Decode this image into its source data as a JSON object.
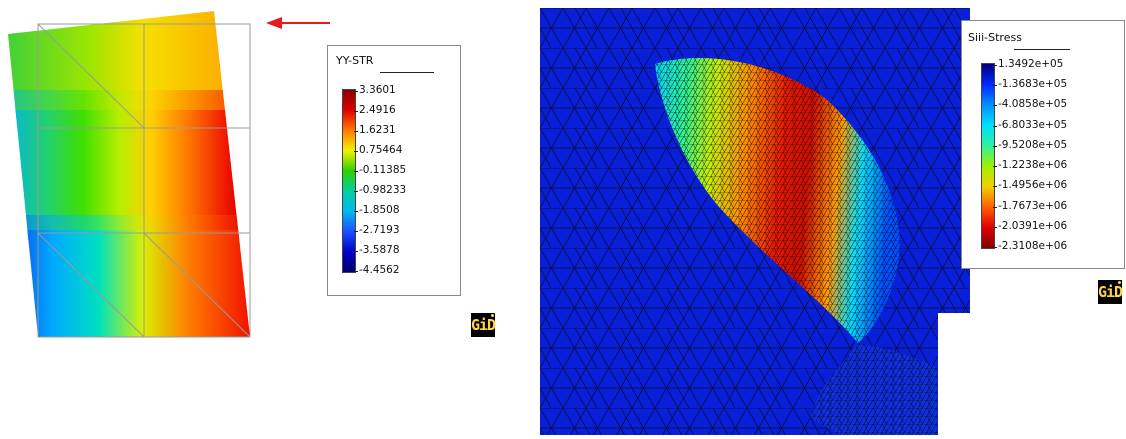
{
  "left_legend": {
    "title": "YY-STR",
    "ticks": [
      "3.3601",
      "2.4916",
      "1.6231",
      "0.75464",
      "-0.11385",
      "-0.98233",
      "-1.8508",
      "-2.7193",
      "-3.5878",
      "-4.4562"
    ],
    "gradient": [
      "#8b0000",
      "#e00000",
      "#ff7a00",
      "#f2f200",
      "#2ed000",
      "#00d0a0",
      "#00b8f0",
      "#1a50ff",
      "#0000c8",
      "#000070"
    ]
  },
  "right_legend": {
    "title": "Siii-Stress",
    "ticks": [
      "1.3492e+05",
      "-1.3683e+05",
      "-4.0858e+05",
      "-6.8033e+05",
      "-9.5208e+05",
      "-1.2238e+06",
      "-1.4956e+06",
      "-1.7673e+06",
      "-2.0391e+06",
      "-2.3108e+06"
    ],
    "gradient": [
      "#000080",
      "#0028ff",
      "#0090ff",
      "#00e0ff",
      "#30f0a0",
      "#a0f000",
      "#f0d000",
      "#ff6000",
      "#e00000",
      "#800000"
    ]
  },
  "logos": {
    "left": "GiD",
    "right": "GiD"
  },
  "colors": {
    "arrow": "#e41b1b",
    "mesh_background": "#0a1fd8"
  }
}
